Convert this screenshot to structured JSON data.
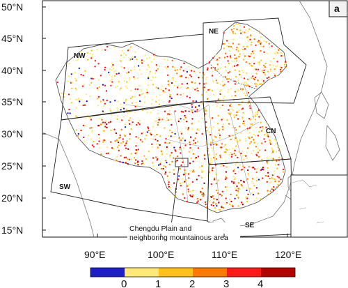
{
  "panel_label": "a",
  "lat_ticks": [
    "50°N",
    "45°N",
    "40°N",
    "35°N",
    "30°N",
    "25°N",
    "20°N",
    "15°N"
  ],
  "lon_ticks": [
    "90°E",
    "100°E",
    "110°E",
    "120°E"
  ],
  "regions": [
    "NW",
    "NE",
    "CN",
    "SW",
    "SE"
  ],
  "annotation": [
    "Chengdu Plain and",
    "neighboring mountainous area"
  ],
  "colorbar": {
    "ticks": [
      "0",
      "1",
      "2",
      "3",
      "4"
    ],
    "colors": [
      "#1e1ec8",
      "#ffe97a",
      "#ffc21a",
      "#ff7a00",
      "#ff1a1a",
      "#b30000"
    ]
  },
  "colors": {
    "border": "#555555",
    "region_box": "#222222"
  }
}
